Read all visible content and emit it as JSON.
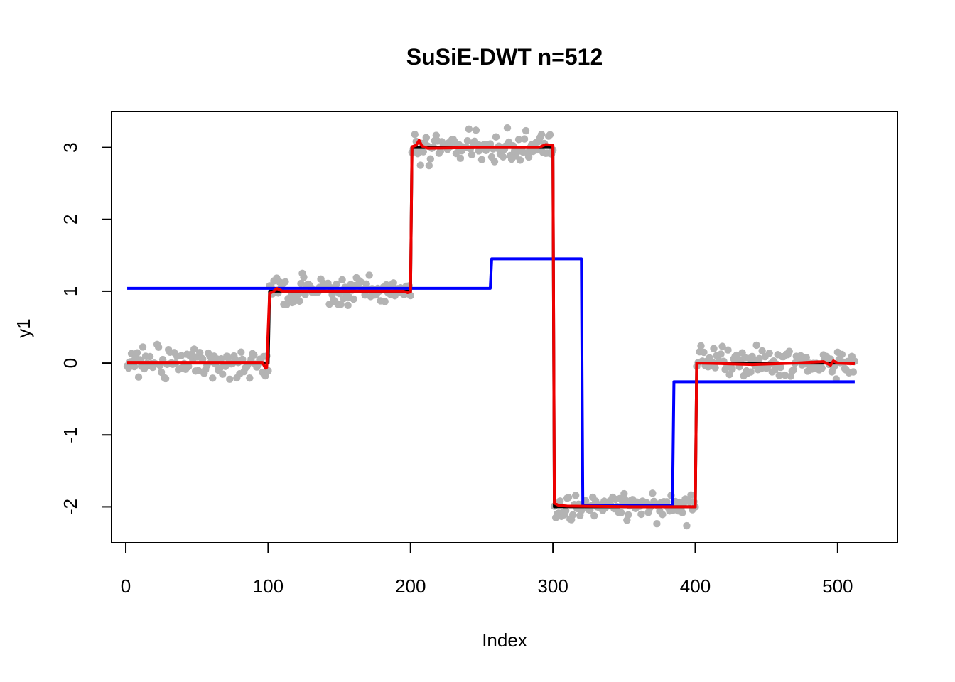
{
  "chart_data": {
    "type": "scatter",
    "title": "SuSiE-DWT n=512",
    "xlabel": "Index",
    "ylabel": "y1",
    "xlim": [
      -10,
      542
    ],
    "ylim": [
      -2.5,
      3.5
    ],
    "x_ticks": [
      0,
      100,
      200,
      300,
      400,
      500
    ],
    "y_ticks": [
      -2,
      -1,
      0,
      1,
      2,
      3
    ],
    "x_tick_labels": [
      "0",
      "100",
      "200",
      "300",
      "400",
      "500"
    ],
    "y_tick_labels": [
      "-2",
      "-1",
      "0",
      "1",
      "2",
      "3"
    ],
    "grid": false,
    "legend": "none",
    "n": 512,
    "noise_sd": 0.1,
    "points": {
      "color": "#b3b3b3",
      "segments": [
        {
          "x_start": 1,
          "x_end": 100,
          "mean": 0
        },
        {
          "x_start": 101,
          "x_end": 200,
          "mean": 1
        },
        {
          "x_start": 201,
          "x_end": 300,
          "mean": 3
        },
        {
          "x_start": 301,
          "x_end": 400,
          "mean": -2
        },
        {
          "x_start": 401,
          "x_end": 512,
          "mean": 0
        }
      ]
    },
    "series": [
      {
        "color": "#000000",
        "style": "step",
        "x": [
          1,
          100,
          101,
          200,
          201,
          300,
          301,
          400,
          401,
          512
        ],
        "y": [
          0,
          0,
          1,
          1,
          3,
          3,
          -2,
          -2,
          0,
          0
        ]
      },
      {
        "color": "#0000ff",
        "style": "step",
        "x": [
          1,
          256,
          257,
          320,
          321,
          384,
          385,
          512
        ],
        "y": [
          1.04,
          1.04,
          1.45,
          1.45,
          -1.98,
          -1.98,
          -0.26,
          -0.26
        ]
      },
      {
        "color": "#ee0000",
        "style": "line",
        "x": [
          1,
          96,
          98,
          99,
          101,
          104,
          106,
          110,
          150,
          195,
          198,
          200,
          201,
          204,
          206,
          208,
          212,
          250,
          290,
          295,
          300,
          301,
          304,
          310,
          360,
          398,
          400,
          401,
          405,
          440,
          470,
          490,
          495,
          497,
          500,
          512
        ],
        "y": [
          0.01,
          0.01,
          -0.07,
          -0.06,
          0.97,
          1.0,
          1.04,
          1.0,
          1.0,
          1.0,
          0.98,
          0.99,
          3.01,
          3.03,
          3.1,
          3.02,
          2.99,
          3.0,
          3.0,
          3.04,
          3.03,
          -1.95,
          -1.98,
          -1.99,
          -2.0,
          -2.0,
          -2.0,
          0.0,
          0.0,
          -0.02,
          0.0,
          0.02,
          -0.03,
          0.03,
          0.0,
          -0.01
        ]
      }
    ]
  }
}
